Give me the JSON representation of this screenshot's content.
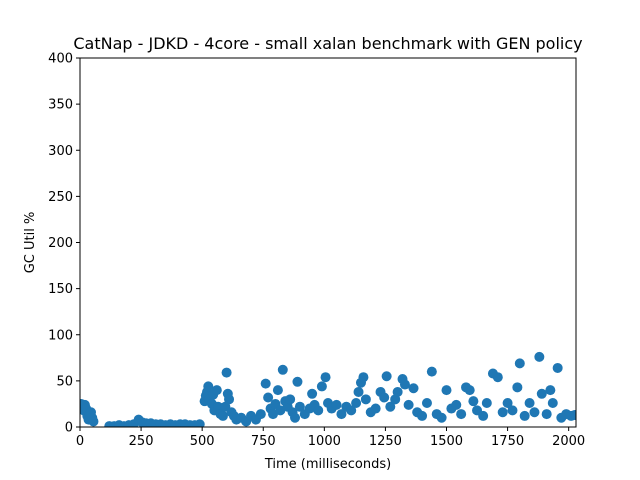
{
  "chart_data": {
    "type": "scatter",
    "title": "CatNap - JDKD - 4core -  small xalan benchmark with GEN policy",
    "xlabel": "Time (milliseconds)",
    "ylabel": "GC Util %",
    "xlim": [
      0,
      2030
    ],
    "ylim": [
      0,
      400
    ],
    "xticks": [
      0,
      250,
      500,
      750,
      1000,
      1250,
      1500,
      1750,
      2000
    ],
    "yticks": [
      0,
      50,
      100,
      150,
      200,
      250,
      300,
      350,
      400
    ],
    "grid": false,
    "legend": "none",
    "color": "#1f77b4",
    "series": [
      {
        "points": [
          [
            5,
            25
          ],
          [
            10,
            22
          ],
          [
            15,
            18
          ],
          [
            20,
            24
          ],
          [
            25,
            20
          ],
          [
            30,
            12
          ],
          [
            35,
            8
          ],
          [
            40,
            14
          ],
          [
            45,
            16
          ],
          [
            50,
            10
          ],
          [
            55,
            6
          ],
          [
            120,
            1
          ],
          [
            140,
            1
          ],
          [
            160,
            2
          ],
          [
            180,
            1
          ],
          [
            200,
            2
          ],
          [
            220,
            3
          ],
          [
            240,
            8
          ],
          [
            255,
            5
          ],
          [
            270,
            4
          ],
          [
            290,
            4
          ],
          [
            310,
            3
          ],
          [
            330,
            3
          ],
          [
            350,
            2
          ],
          [
            370,
            3
          ],
          [
            390,
            2
          ],
          [
            410,
            3
          ],
          [
            430,
            3
          ],
          [
            450,
            2
          ],
          [
            470,
            2
          ],
          [
            490,
            3
          ],
          [
            510,
            28
          ],
          [
            515,
            34
          ],
          [
            520,
            38
          ],
          [
            525,
            44
          ],
          [
            530,
            30
          ],
          [
            540,
            25
          ],
          [
            545,
            35
          ],
          [
            550,
            18
          ],
          [
            560,
            40
          ],
          [
            565,
            22
          ],
          [
            575,
            14
          ],
          [
            585,
            12
          ],
          [
            595,
            22
          ],
          [
            600,
            59
          ],
          [
            605,
            36
          ],
          [
            610,
            30
          ],
          [
            620,
            16
          ],
          [
            630,
            12
          ],
          [
            640,
            8
          ],
          [
            660,
            10
          ],
          [
            680,
            6
          ],
          [
            700,
            12
          ],
          [
            720,
            8
          ],
          [
            740,
            14
          ],
          [
            760,
            47
          ],
          [
            770,
            32
          ],
          [
            780,
            20
          ],
          [
            790,
            14
          ],
          [
            800,
            25
          ],
          [
            810,
            40
          ],
          [
            820,
            18
          ],
          [
            830,
            62
          ],
          [
            840,
            28
          ],
          [
            850,
            22
          ],
          [
            860,
            30
          ],
          [
            870,
            16
          ],
          [
            880,
            10
          ],
          [
            890,
            49
          ],
          [
            900,
            22
          ],
          [
            920,
            14
          ],
          [
            940,
            20
          ],
          [
            950,
            36
          ],
          [
            960,
            24
          ],
          [
            975,
            18
          ],
          [
            990,
            44
          ],
          [
            1005,
            54
          ],
          [
            1015,
            26
          ],
          [
            1030,
            20
          ],
          [
            1050,
            24
          ],
          [
            1070,
            14
          ],
          [
            1090,
            22
          ],
          [
            1110,
            18
          ],
          [
            1130,
            26
          ],
          [
            1140,
            38
          ],
          [
            1150,
            48
          ],
          [
            1160,
            54
          ],
          [
            1170,
            30
          ],
          [
            1190,
            16
          ],
          [
            1210,
            20
          ],
          [
            1230,
            38
          ],
          [
            1245,
            32
          ],
          [
            1255,
            55
          ],
          [
            1270,
            22
          ],
          [
            1290,
            30
          ],
          [
            1300,
            38
          ],
          [
            1320,
            52
          ],
          [
            1330,
            46
          ],
          [
            1345,
            24
          ],
          [
            1365,
            42
          ],
          [
            1380,
            16
          ],
          [
            1400,
            12
          ],
          [
            1420,
            26
          ],
          [
            1440,
            60
          ],
          [
            1460,
            14
          ],
          [
            1480,
            10
          ],
          [
            1500,
            40
          ],
          [
            1520,
            20
          ],
          [
            1540,
            24
          ],
          [
            1560,
            14
          ],
          [
            1580,
            43
          ],
          [
            1595,
            40
          ],
          [
            1610,
            28
          ],
          [
            1625,
            18
          ],
          [
            1650,
            12
          ],
          [
            1665,
            26
          ],
          [
            1690,
            58
          ],
          [
            1710,
            54
          ],
          [
            1730,
            16
          ],
          [
            1750,
            26
          ],
          [
            1770,
            18
          ],
          [
            1790,
            43
          ],
          [
            1800,
            69
          ],
          [
            1820,
            12
          ],
          [
            1840,
            26
          ],
          [
            1860,
            16
          ],
          [
            1880,
            76
          ],
          [
            1890,
            36
          ],
          [
            1910,
            14
          ],
          [
            1925,
            40
          ],
          [
            1935,
            26
          ],
          [
            1955,
            64
          ],
          [
            1970,
            10
          ],
          [
            1990,
            14
          ],
          [
            2010,
            12
          ],
          [
            2025,
            13
          ]
        ]
      }
    ]
  }
}
